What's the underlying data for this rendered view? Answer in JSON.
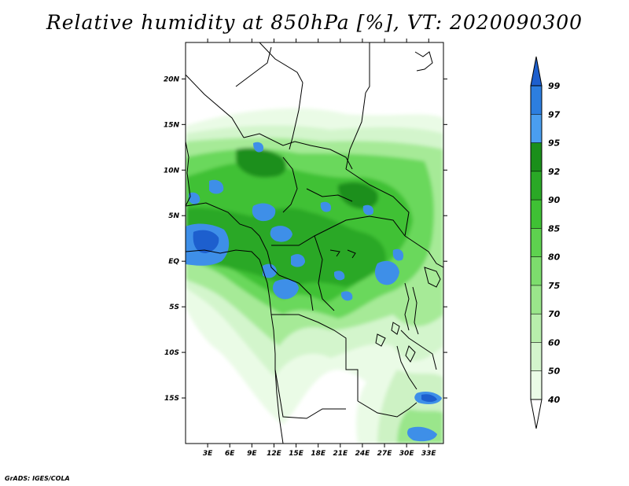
{
  "title": "Relative humidity at 850hPa [%], VT: 2020090300",
  "credit": "GrADS: IGES/COLA",
  "map": {
    "variable": "Relative humidity at 850hPa",
    "lon_range": [
      0,
      35
    ],
    "lat_range": [
      -20,
      24
    ],
    "lat_ticks": [
      {
        "value": 20,
        "label": "20N"
      },
      {
        "value": 15,
        "label": "15N"
      },
      {
        "value": 10,
        "label": "10N"
      },
      {
        "value": 5,
        "label": "5N"
      },
      {
        "value": 0,
        "label": "EQ"
      },
      {
        "value": -5,
        "label": "5S"
      },
      {
        "value": -10,
        "label": "10S"
      },
      {
        "value": -15,
        "label": "15S"
      }
    ],
    "lon_ticks": [
      {
        "value": 3,
        "label": "3E"
      },
      {
        "value": 6,
        "label": "6E"
      },
      {
        "value": 9,
        "label": "9E"
      },
      {
        "value": 12,
        "label": "12E"
      },
      {
        "value": 15,
        "label": "15E"
      },
      {
        "value": 18,
        "label": "18E"
      },
      {
        "value": 21,
        "label": "21E"
      },
      {
        "value": 24,
        "label": "24E"
      },
      {
        "value": 27,
        "label": "27E"
      },
      {
        "value": 30,
        "label": "30E"
      },
      {
        "value": 33,
        "label": "33E"
      }
    ]
  },
  "colorbar": {
    "levels": [
      "40",
      "50",
      "60",
      "70",
      "75",
      "80",
      "85",
      "90",
      "92",
      "95",
      "97",
      "99"
    ],
    "colors": [
      "#eafbe6",
      "#d3f5cc",
      "#b8eeac",
      "#9ae68b",
      "#7ddd6d",
      "#5ed24f",
      "#3fc134",
      "#2aa826",
      "#1a8f1a",
      "#4a9ef0",
      "#2c7ee0",
      "#1d5fce",
      "#1a4fb0"
    ],
    "below_color": "#ffffff"
  }
}
